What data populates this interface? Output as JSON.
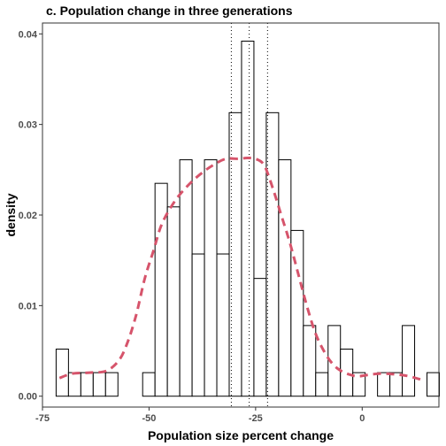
{
  "chart_data": {
    "type": "bar",
    "title": "c. Population change in three generations",
    "xlabel": "Population size percent change",
    "ylabel": "density",
    "xlim": [
      -75,
      18
    ],
    "ylim": [
      -0.0012,
      0.0412
    ],
    "xticks": [
      -75,
      -50,
      -25,
      0
    ],
    "yticks": [
      0.0,
      0.01,
      0.02,
      0.03,
      0.04
    ],
    "ytick_labels": [
      "0.00",
      "0.01",
      "0.02",
      "0.03",
      "0.04"
    ],
    "bin_width": 2.9,
    "bin_start": -71.8,
    "bars": [
      0.0052,
      0.0026,
      0.0026,
      0.0026,
      0.0026,
      0.0,
      0.0,
      0.0026,
      0.0235,
      0.0209,
      0.0261,
      0.0157,
      0.0261,
      0.0157,
      0.0313,
      0.0392,
      0.013,
      0.0313,
      0.0261,
      0.0183,
      0.0078,
      0.0026,
      0.0078,
      0.0052,
      0.0026,
      0.0,
      0.0026,
      0.0026,
      0.0078,
      0.0,
      0.0026
    ],
    "density_curve": {
      "color": "#d6546b",
      "x": [
        -71,
        -68,
        -64,
        -60,
        -57,
        -55,
        -53,
        -51,
        -49,
        -47,
        -44,
        -41,
        -38,
        -35,
        -32,
        -29,
        -27,
        -25,
        -23,
        -21,
        -19,
        -17,
        -15,
        -13,
        -11,
        -9,
        -7,
        -5,
        -3,
        -1,
        2,
        5,
        8,
        11,
        14
      ],
      "y": [
        0.002,
        0.0025,
        0.0026,
        0.0028,
        0.004,
        0.006,
        0.009,
        0.013,
        0.016,
        0.019,
        0.0215,
        0.0232,
        0.0245,
        0.0255,
        0.0262,
        0.0262,
        0.0263,
        0.0262,
        0.0255,
        0.023,
        0.02,
        0.017,
        0.0135,
        0.01,
        0.007,
        0.005,
        0.0036,
        0.0028,
        0.0024,
        0.0022,
        0.0024,
        0.0025,
        0.0024,
        0.0022,
        0.0018
      ]
    },
    "vlines": [
      -30.7,
      -26.5,
      -22.2
    ],
    "grid": false
  }
}
